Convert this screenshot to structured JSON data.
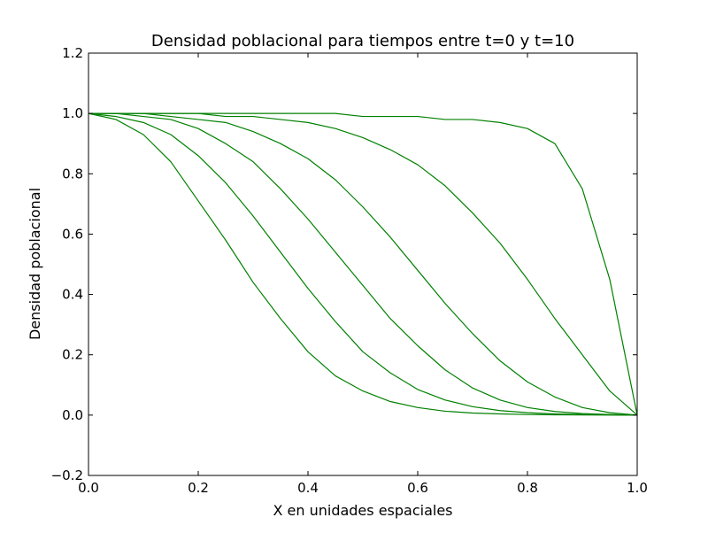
{
  "chart_data": {
    "type": "line",
    "title": "Densidad poblacional para tiempos entre t=0 y t=10",
    "xlabel": "X en unidades espaciales",
    "ylabel": "Densidad poblacional",
    "xlim": [
      0.0,
      1.0
    ],
    "ylim": [
      -0.2,
      1.2
    ],
    "xticks": [
      {
        "value": 0.0,
        "label": "0.0"
      },
      {
        "value": 0.2,
        "label": "0.2"
      },
      {
        "value": 0.4,
        "label": "0.4"
      },
      {
        "value": 0.6,
        "label": "0.6"
      },
      {
        "value": 0.8,
        "label": "0.8"
      },
      {
        "value": 1.0,
        "label": "1.0"
      }
    ],
    "yticks": [
      {
        "value": -0.2,
        "label": "−0.2"
      },
      {
        "value": 0.0,
        "label": "0.0"
      },
      {
        "value": 0.2,
        "label": "0.2"
      },
      {
        "value": 0.4,
        "label": "0.4"
      },
      {
        "value": 0.6,
        "label": "0.6"
      },
      {
        "value": 0.8,
        "label": "0.8"
      },
      {
        "value": 1.0,
        "label": "1.0"
      },
      {
        "value": 1.2,
        "label": "1.2"
      }
    ],
    "grid": false,
    "legend": "none",
    "line_color": "#008000",
    "series": [
      {
        "x": [
          0,
          0.05,
          0.1,
          0.15,
          0.2,
          0.25,
          0.3,
          0.35,
          0.4,
          0.45,
          0.5,
          0.55,
          0.6,
          0.65,
          0.7,
          0.75,
          0.8,
          0.85,
          0.9,
          0.95,
          1.0
        ],
        "y": [
          1.0,
          0.98,
          0.93,
          0.84,
          0.71,
          0.58,
          0.44,
          0.32,
          0.21,
          0.13,
          0.08,
          0.045,
          0.025,
          0.013,
          0.007,
          0.004,
          0.002,
          0.001,
          0.0005,
          0.0002,
          0.0
        ]
      },
      {
        "x": [
          0,
          0.05,
          0.1,
          0.15,
          0.2,
          0.25,
          0.3,
          0.35,
          0.4,
          0.45,
          0.5,
          0.55,
          0.6,
          0.65,
          0.7,
          0.75,
          0.8,
          0.85,
          0.9,
          0.95,
          1.0
        ],
        "y": [
          1.0,
          0.99,
          0.97,
          0.93,
          0.86,
          0.77,
          0.66,
          0.54,
          0.42,
          0.31,
          0.21,
          0.14,
          0.085,
          0.05,
          0.028,
          0.015,
          0.008,
          0.004,
          0.002,
          0.001,
          0.0
        ]
      },
      {
        "x": [
          0,
          0.05,
          0.1,
          0.15,
          0.2,
          0.25,
          0.3,
          0.35,
          0.4,
          0.45,
          0.5,
          0.55,
          0.6,
          0.65,
          0.7,
          0.75,
          0.8,
          0.85,
          0.9,
          0.95,
          1.0
        ],
        "y": [
          1.0,
          1.0,
          0.99,
          0.98,
          0.95,
          0.9,
          0.84,
          0.75,
          0.65,
          0.54,
          0.43,
          0.32,
          0.23,
          0.15,
          0.09,
          0.05,
          0.025,
          0.012,
          0.005,
          0.002,
          0.0
        ]
      },
      {
        "x": [
          0,
          0.05,
          0.1,
          0.15,
          0.2,
          0.25,
          0.3,
          0.35,
          0.4,
          0.45,
          0.5,
          0.55,
          0.6,
          0.65,
          0.7,
          0.75,
          0.8,
          0.85,
          0.9,
          0.95,
          1.0
        ],
        "y": [
          1.0,
          1.0,
          1.0,
          0.99,
          0.98,
          0.97,
          0.94,
          0.9,
          0.85,
          0.78,
          0.69,
          0.59,
          0.48,
          0.37,
          0.27,
          0.18,
          0.11,
          0.06,
          0.025,
          0.008,
          0.0
        ]
      },
      {
        "x": [
          0,
          0.05,
          0.1,
          0.15,
          0.2,
          0.25,
          0.3,
          0.35,
          0.4,
          0.45,
          0.5,
          0.55,
          0.6,
          0.65,
          0.7,
          0.75,
          0.8,
          0.85,
          0.9,
          0.95,
          1.0
        ],
        "y": [
          1.0,
          1.0,
          1.0,
          1.0,
          1.0,
          0.99,
          0.99,
          0.98,
          0.97,
          0.95,
          0.92,
          0.88,
          0.83,
          0.76,
          0.67,
          0.57,
          0.45,
          0.32,
          0.2,
          0.08,
          0.0
        ]
      },
      {
        "x": [
          0,
          0.05,
          0.1,
          0.15,
          0.2,
          0.25,
          0.3,
          0.35,
          0.4,
          0.45,
          0.5,
          0.55,
          0.6,
          0.65,
          0.7,
          0.75,
          0.8,
          0.85,
          0.9,
          0.95,
          1.0
        ],
        "y": [
          1.0,
          1.0,
          1.0,
          1.0,
          1.0,
          1.0,
          1.0,
          1.0,
          1.0,
          1.0,
          0.99,
          0.99,
          0.99,
          0.98,
          0.98,
          0.97,
          0.95,
          0.9,
          0.75,
          0.45,
          0.0
        ]
      }
    ]
  }
}
